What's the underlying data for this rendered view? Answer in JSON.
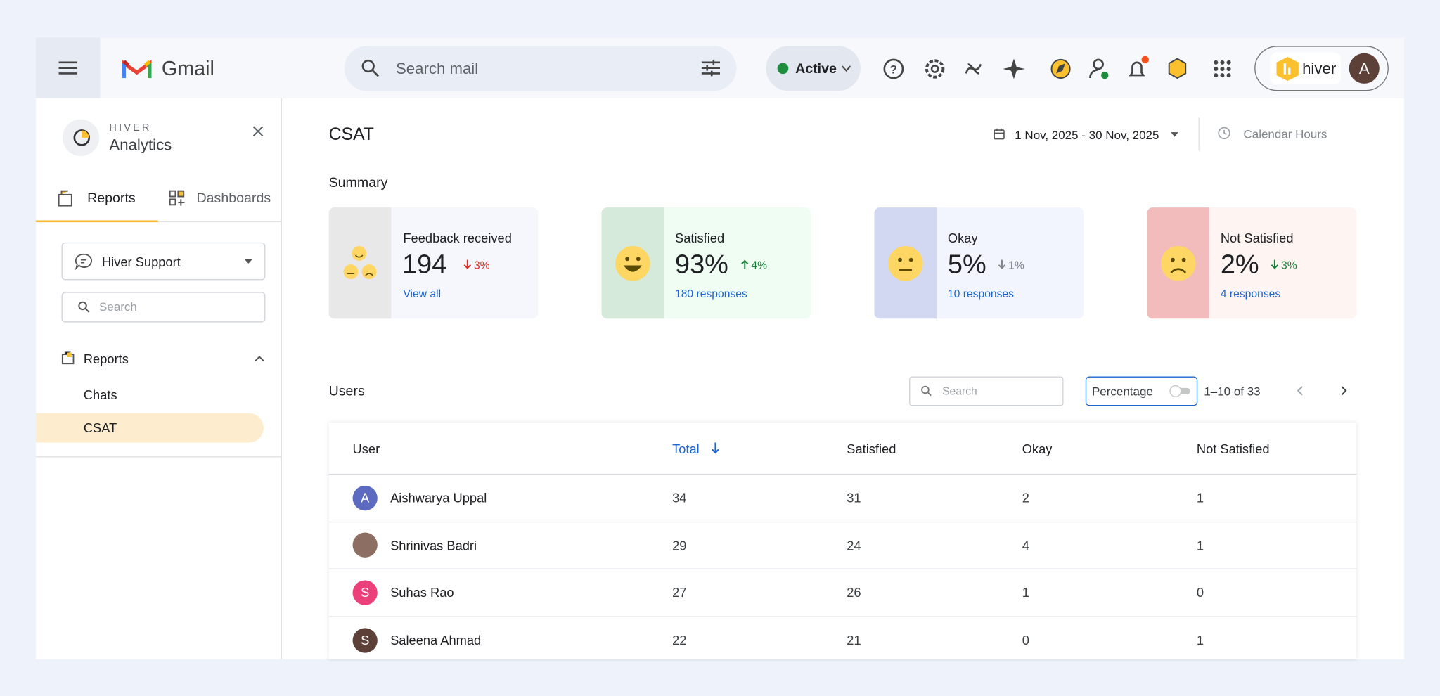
{
  "header": {
    "app": "Gmail",
    "search_placeholder": "Search mail",
    "status": "Active",
    "account_brand": "hiver",
    "avatar": "A"
  },
  "sidebar": {
    "brand": "HIVER",
    "title": "Analytics",
    "tabs": [
      "Reports",
      "Dashboards"
    ],
    "workspace": "Hiver Support",
    "search_placeholder": "Search",
    "section": "Reports",
    "items": [
      "Chats",
      "CSAT"
    ]
  },
  "main": {
    "title": "CSAT",
    "date_range": "1 Nov, 2025 - 30 Nov, 2025",
    "hours": "Calendar Hours",
    "summary_title": "Summary",
    "cards": [
      {
        "label": "Feedback received",
        "value": "194",
        "change": "3%",
        "link": "View all"
      },
      {
        "label": "Satisfied",
        "value": "93%",
        "change": "4%",
        "link": "180 responses"
      },
      {
        "label": "Okay",
        "value": "5%",
        "change": "1%",
        "link": "10 responses"
      },
      {
        "label": "Not Satisfied",
        "value": "2%",
        "change": "3%",
        "link": "4 responses"
      }
    ],
    "users": {
      "title": "Users",
      "search_placeholder": "Search",
      "toggle": "Percentage",
      "pagination": "1–10 of 33"
    }
  },
  "table": {
    "columns": [
      "User",
      "Total",
      "Satisfied",
      "Okay",
      "Not Satisfied"
    ],
    "rows": [
      {
        "avatar": "A",
        "user": "Aishwarya Uppal",
        "total": 34,
        "satisfied": 31,
        "okay": 2,
        "not_satisfied": 1
      },
      {
        "user": "Shrinivas Badri",
        "total": 29,
        "satisfied": 24,
        "okay": 4,
        "not_satisfied": 1
      },
      {
        "avatar": "S",
        "user": "Suhas Rao",
        "total": 27,
        "satisfied": 26,
        "okay": 1,
        "not_satisfied": 0
      },
      {
        "avatar": "S",
        "user": "Saleena Ahmad",
        "total": 22,
        "satisfied": 21,
        "okay": 0,
        "not_satisfied": 1
      }
    ]
  }
}
